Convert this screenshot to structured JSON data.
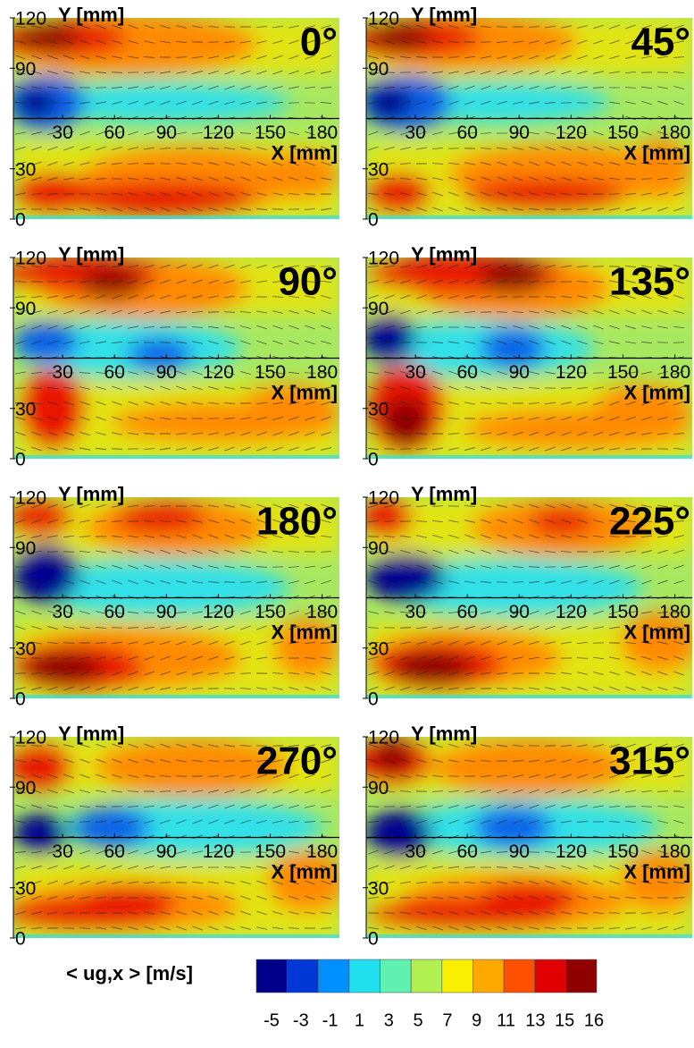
{
  "chart_data": [
    {
      "type": "contour",
      "title": "0°",
      "xlabel": "X [mm]",
      "ylabel": "Y [mm]",
      "xlim": [
        0,
        190
      ],
      "ylim": [
        0,
        120
      ],
      "xticks": [
        30,
        60,
        90,
        120,
        150,
        180
      ],
      "yticks": [
        0,
        30,
        90,
        120
      ]
    },
    {
      "type": "contour",
      "title": "45°",
      "xlabel": "X [mm]",
      "ylabel": "Y [mm]",
      "xlim": [
        0,
        190
      ],
      "ylim": [
        0,
        120
      ],
      "xticks": [
        30,
        60,
        90,
        120,
        150,
        180
      ],
      "yticks": [
        0,
        30,
        90,
        120
      ]
    },
    {
      "type": "contour",
      "title": "90°",
      "xlabel": "X [mm]",
      "ylabel": "Y [mm]",
      "xlim": [
        0,
        190
      ],
      "ylim": [
        0,
        120
      ],
      "xticks": [
        30,
        60,
        90,
        120,
        150,
        180
      ],
      "yticks": [
        0,
        30,
        90,
        120
      ]
    },
    {
      "type": "contour",
      "title": "135°",
      "xlabel": "X [mm]",
      "ylabel": "Y [mm]",
      "xlim": [
        0,
        190
      ],
      "ylim": [
        0,
        120
      ],
      "xticks": [
        30,
        60,
        90,
        120,
        150,
        180
      ],
      "yticks": [
        0,
        30,
        90,
        120
      ]
    },
    {
      "type": "contour",
      "title": "180°",
      "xlabel": "X [mm]",
      "ylabel": "Y [mm]",
      "xlim": [
        0,
        190
      ],
      "ylim": [
        0,
        120
      ],
      "xticks": [
        30,
        60,
        90,
        120,
        150,
        180
      ],
      "yticks": [
        0,
        30,
        90,
        120
      ]
    },
    {
      "type": "contour",
      "title": "225°",
      "xlabel": "X [mm]",
      "ylabel": "Y [mm]",
      "xlim": [
        0,
        190
      ],
      "ylim": [
        0,
        120
      ],
      "xticks": [
        30,
        60,
        90,
        120,
        150,
        180
      ],
      "yticks": [
        0,
        30,
        90,
        120
      ]
    },
    {
      "type": "contour",
      "title": "270°",
      "xlabel": "X [mm]",
      "ylabel": "Y [mm]",
      "xlim": [
        0,
        190
      ],
      "ylim": [
        0,
        120
      ],
      "xticks": [
        30,
        60,
        90,
        120,
        150,
        180
      ],
      "yticks": [
        0,
        30,
        90,
        120
      ]
    },
    {
      "type": "contour",
      "title": "315°",
      "xlabel": "X [mm]",
      "ylabel": "Y [mm]",
      "xlim": [
        0,
        190
      ],
      "ylim": [
        0,
        120
      ],
      "xticks": [
        30,
        60,
        90,
        120,
        150,
        180
      ],
      "yticks": [
        0,
        30,
        90,
        120
      ]
    }
  ],
  "colorbar": {
    "label": "< ug,x > [m/s]",
    "levels": [
      -5,
      -3,
      -1,
      1,
      3,
      5,
      7,
      9,
      11,
      13,
      15,
      16
    ],
    "colors": [
      "#00008b",
      "#0038d8",
      "#0090ff",
      "#20e0f0",
      "#60f0b0",
      "#b0f050",
      "#f8f000",
      "#ffa800",
      "#ff5000",
      "#e00000",
      "#900000"
    ]
  }
}
